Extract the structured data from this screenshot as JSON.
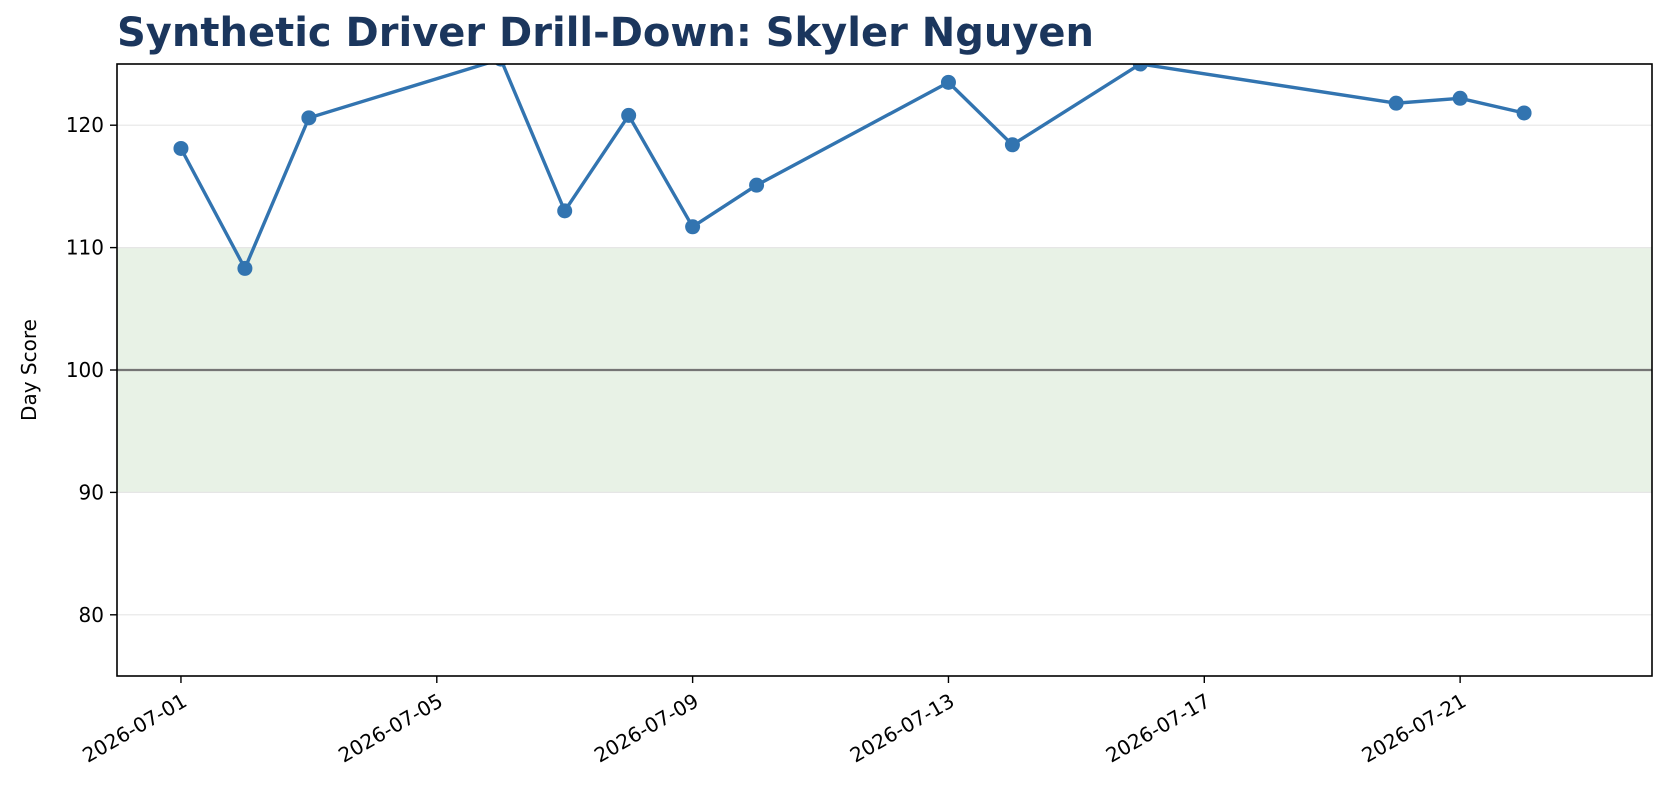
{
  "chart_data": {
    "type": "line",
    "title": "Synthetic Driver Drill-Down: Skyler Nguyen",
    "xlabel": "",
    "ylabel": "Day Score",
    "ylim": [
      75,
      125
    ],
    "xlim": [
      "2026-06-30",
      "2026-07-24"
    ],
    "y_ticks": [
      80,
      90,
      100,
      110,
      120
    ],
    "x_ticks": [
      "2026-07-01",
      "2026-07-05",
      "2026-07-09",
      "2026-07-13",
      "2026-07-17",
      "2026-07-21"
    ],
    "grid": "horizontal",
    "reference_line": 100,
    "band": [
      90,
      110
    ],
    "series": [
      {
        "x": [
          "2026-07-01",
          "2026-07-02",
          "2026-07-03",
          "2026-07-06",
          "2026-07-07",
          "2026-07-08",
          "2026-07-09",
          "2026-07-10",
          "2026-07-13",
          "2026-07-14",
          "2026-07-16",
          "2026-07-20",
          "2026-07-21",
          "2026-07-22"
        ],
        "values": [
          118.1,
          108.3,
          120.6,
          125.4,
          113.0,
          120.8,
          111.7,
          115.1,
          123.5,
          118.4,
          125.0,
          121.8,
          122.2,
          121.0
        ]
      }
    ]
  },
  "colors": {
    "title": "#1b365d",
    "line": "#3274b0",
    "band": "#e8f2e6",
    "reference_line": "#757575",
    "grid": "#e6e6e6"
  }
}
